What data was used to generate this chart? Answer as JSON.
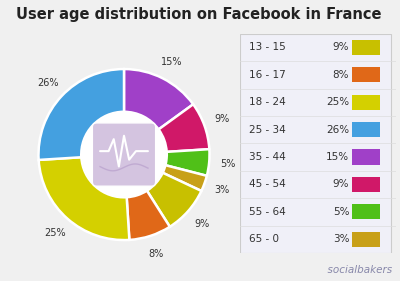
{
  "title": "User age distribution on Facebook in France",
  "categories": [
    "13 - 15",
    "16 - 17",
    "18 - 24",
    "25 - 34",
    "35 - 44",
    "45 - 54",
    "55 - 64",
    "65 - 0"
  ],
  "values": [
    9,
    8,
    25,
    26,
    15,
    9,
    5,
    3
  ],
  "colors": [
    "#c8c000",
    "#e06818",
    "#d4d000",
    "#44a0e0",
    "#a040c8",
    "#d01868",
    "#50c018",
    "#c8a018"
  ],
  "labels_pct": [
    "9%",
    "8%",
    "25%",
    "26%",
    "15%",
    "9%",
    "5%",
    "3%"
  ],
  "background_color": "#f0f0f0",
  "panel_color": "#ffffff",
  "title_fontsize": 10.5,
  "legend_fontsize": 7.5,
  "plot_order": [
    4,
    5,
    6,
    7,
    0,
    1,
    2,
    3
  ]
}
